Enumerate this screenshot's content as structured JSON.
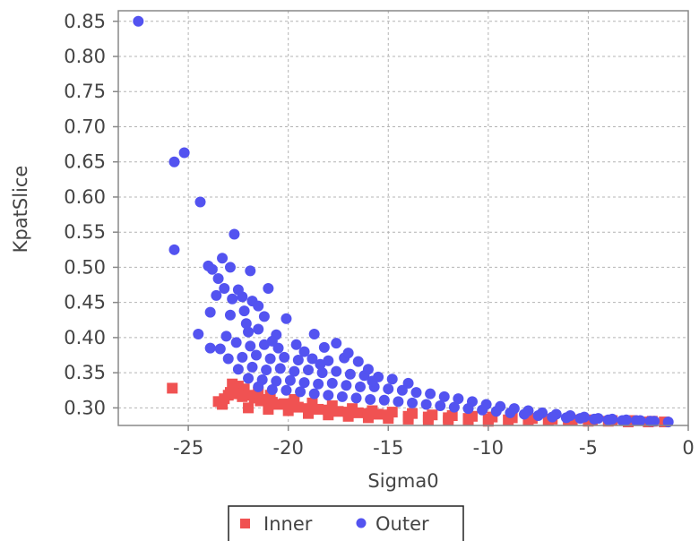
{
  "chart_data": {
    "type": "scatter",
    "title": "",
    "xlabel": "Sigma0",
    "ylabel": "KpatSlice",
    "xlim": [
      -28.5,
      0
    ],
    "ylim": [
      0.275,
      0.865
    ],
    "x_ticks": [
      -25,
      -20,
      -15,
      -10,
      -5,
      0
    ],
    "x_tick_labels": [
      "-25",
      "-20",
      "-15",
      "-10",
      "-5",
      "0"
    ],
    "y_ticks": [
      0.3,
      0.35,
      0.4,
      0.45,
      0.5,
      0.55,
      0.6,
      0.65,
      0.7,
      0.75,
      0.8,
      0.85
    ],
    "y_tick_labels": [
      "0.30",
      "0.35",
      "0.40",
      "0.45",
      "0.50",
      "0.55",
      "0.60",
      "0.65",
      "0.70",
      "0.75",
      "0.80",
      "0.85"
    ],
    "grid": true,
    "legend_position": "bottom",
    "series": [
      {
        "name": "Inner",
        "marker": "square",
        "color": "#f05252",
        "points": [
          [
            -25.8,
            0.328
          ],
          [
            -22.8,
            0.334
          ],
          [
            -22.5,
            0.331
          ],
          [
            -22.2,
            0.327
          ],
          [
            -23.5,
            0.309
          ],
          [
            -23.2,
            0.313
          ],
          [
            -23.0,
            0.318
          ],
          [
            -22.9,
            0.322
          ],
          [
            -22.6,
            0.32
          ],
          [
            -22.3,
            0.316
          ],
          [
            -22.0,
            0.318
          ],
          [
            -21.7,
            0.314
          ],
          [
            -21.4,
            0.31
          ],
          [
            -21.1,
            0.312
          ],
          [
            -20.8,
            0.308
          ],
          [
            -20.5,
            0.305
          ],
          [
            -20.2,
            0.306
          ],
          [
            -19.8,
            0.303
          ],
          [
            -19.5,
            0.301
          ],
          [
            -19.0,
            0.299
          ],
          [
            -18.5,
            0.298
          ],
          [
            -18.0,
            0.297
          ],
          [
            -17.5,
            0.295
          ],
          [
            -17.0,
            0.294
          ],
          [
            -16.5,
            0.293
          ],
          [
            -16.0,
            0.292
          ],
          [
            -15.5,
            0.291
          ],
          [
            -15.0,
            0.29
          ],
          [
            -14.0,
            0.288
          ],
          [
            -13.0,
            0.287
          ],
          [
            -12.0,
            0.286
          ],
          [
            -11.0,
            0.285
          ],
          [
            -10.0,
            0.284
          ],
          [
            -9.0,
            0.283
          ],
          [
            -8.0,
            0.283
          ],
          [
            -7.0,
            0.282
          ],
          [
            -6.0,
            0.282
          ],
          [
            -5.0,
            0.281
          ],
          [
            -4.0,
            0.281
          ],
          [
            -3.0,
            0.28
          ],
          [
            -2.0,
            0.28
          ],
          [
            -1.2,
            0.28
          ],
          [
            -22.0,
            0.3
          ],
          [
            -21.0,
            0.298
          ],
          [
            -20.0,
            0.296
          ],
          [
            -19.0,
            0.292
          ],
          [
            -18.0,
            0.29
          ],
          [
            -17.0,
            0.288
          ],
          [
            -16.0,
            0.286
          ],
          [
            -15.0,
            0.285
          ],
          [
            -14.0,
            0.284
          ],
          [
            -13.0,
            0.283
          ],
          [
            -12.0,
            0.282
          ],
          [
            -11.0,
            0.282
          ],
          [
            -10.0,
            0.281
          ],
          [
            -23.3,
            0.305
          ],
          [
            -21.5,
            0.322
          ],
          [
            -20.9,
            0.318
          ],
          [
            -19.7,
            0.312
          ],
          [
            -18.8,
            0.307
          ],
          [
            -17.8,
            0.303
          ],
          [
            -16.8,
            0.299
          ],
          [
            -15.8,
            0.296
          ],
          [
            -14.8,
            0.294
          ],
          [
            -13.8,
            0.292
          ],
          [
            -12.8,
            0.29
          ],
          [
            -11.8,
            0.289
          ],
          [
            -10.8,
            0.288
          ],
          [
            -9.8,
            0.287
          ],
          [
            -8.8,
            0.286
          ],
          [
            -7.8,
            0.285
          ],
          [
            -6.8,
            0.284
          ],
          [
            -5.8,
            0.283
          ],
          [
            -4.8,
            0.283
          ],
          [
            -3.8,
            0.282
          ],
          [
            -2.8,
            0.282
          ],
          [
            -1.8,
            0.281
          ]
        ]
      },
      {
        "name": "Outer",
        "marker": "circle",
        "color": "#5353f0",
        "points": [
          [
            -27.5,
            0.85
          ],
          [
            -25.2,
            0.663
          ],
          [
            -25.7,
            0.65
          ],
          [
            -24.4,
            0.593
          ],
          [
            -22.7,
            0.547
          ],
          [
            -25.7,
            0.525
          ],
          [
            -23.3,
            0.513
          ],
          [
            -24.0,
            0.502
          ],
          [
            -23.8,
            0.497
          ],
          [
            -22.9,
            0.5
          ],
          [
            -21.9,
            0.495
          ],
          [
            -23.5,
            0.484
          ],
          [
            -23.2,
            0.47
          ],
          [
            -22.5,
            0.468
          ],
          [
            -21.0,
            0.47
          ],
          [
            -23.6,
            0.46
          ],
          [
            -22.8,
            0.455
          ],
          [
            -22.3,
            0.458
          ],
          [
            -21.8,
            0.452
          ],
          [
            -21.5,
            0.445
          ],
          [
            -23.9,
            0.436
          ],
          [
            -22.9,
            0.432
          ],
          [
            -22.2,
            0.438
          ],
          [
            -21.2,
            0.43
          ],
          [
            -20.1,
            0.427
          ],
          [
            -24.5,
            0.405
          ],
          [
            -23.1,
            0.402
          ],
          [
            -22.0,
            0.408
          ],
          [
            -21.5,
            0.412
          ],
          [
            -20.6,
            0.404
          ],
          [
            -18.7,
            0.405
          ],
          [
            -23.9,
            0.385
          ],
          [
            -23.4,
            0.384
          ],
          [
            -22.6,
            0.393
          ],
          [
            -21.9,
            0.388
          ],
          [
            -21.2,
            0.39
          ],
          [
            -20.5,
            0.385
          ],
          [
            -19.6,
            0.39
          ],
          [
            -18.2,
            0.386
          ],
          [
            -17.6,
            0.392
          ],
          [
            -23.0,
            0.37
          ],
          [
            -22.3,
            0.372
          ],
          [
            -21.6,
            0.375
          ],
          [
            -20.9,
            0.37
          ],
          [
            -20.2,
            0.372
          ],
          [
            -19.5,
            0.368
          ],
          [
            -18.8,
            0.37
          ],
          [
            -18.0,
            0.367
          ],
          [
            -17.2,
            0.371
          ],
          [
            -16.5,
            0.366
          ],
          [
            -22.5,
            0.355
          ],
          [
            -21.8,
            0.358
          ],
          [
            -21.1,
            0.354
          ],
          [
            -20.4,
            0.356
          ],
          [
            -19.7,
            0.352
          ],
          [
            -19.0,
            0.354
          ],
          [
            -18.3,
            0.35
          ],
          [
            -17.6,
            0.352
          ],
          [
            -16.9,
            0.348
          ],
          [
            -16.2,
            0.346
          ],
          [
            -15.5,
            0.344
          ],
          [
            -14.8,
            0.341
          ],
          [
            -22.0,
            0.342
          ],
          [
            -21.3,
            0.34
          ],
          [
            -20.6,
            0.338
          ],
          [
            -19.9,
            0.339
          ],
          [
            -19.2,
            0.336
          ],
          [
            -18.5,
            0.334
          ],
          [
            -17.8,
            0.335
          ],
          [
            -17.1,
            0.332
          ],
          [
            -16.4,
            0.33
          ],
          [
            -15.7,
            0.33
          ],
          [
            -15.0,
            0.327
          ],
          [
            -14.3,
            0.325
          ],
          [
            -13.6,
            0.322
          ],
          [
            -12.9,
            0.32
          ],
          [
            -12.2,
            0.316
          ],
          [
            -11.5,
            0.313
          ],
          [
            -10.8,
            0.309
          ],
          [
            -10.1,
            0.305
          ],
          [
            -9.4,
            0.302
          ],
          [
            -8.7,
            0.299
          ],
          [
            -8.0,
            0.296
          ],
          [
            -7.3,
            0.293
          ],
          [
            -6.6,
            0.291
          ],
          [
            -5.9,
            0.289
          ],
          [
            -5.2,
            0.287
          ],
          [
            -4.5,
            0.285
          ],
          [
            -3.8,
            0.284
          ],
          [
            -3.1,
            0.283
          ],
          [
            -2.4,
            0.282
          ],
          [
            -1.7,
            0.281
          ],
          [
            -1.0,
            0.28
          ],
          [
            -21.5,
            0.33
          ],
          [
            -20.8,
            0.326
          ],
          [
            -20.1,
            0.325
          ],
          [
            -19.4,
            0.323
          ],
          [
            -18.7,
            0.32
          ],
          [
            -18.0,
            0.318
          ],
          [
            -17.3,
            0.316
          ],
          [
            -16.6,
            0.314
          ],
          [
            -15.9,
            0.312
          ],
          [
            -15.2,
            0.311
          ],
          [
            -14.5,
            0.309
          ],
          [
            -13.8,
            0.307
          ],
          [
            -13.1,
            0.305
          ],
          [
            -12.4,
            0.303
          ],
          [
            -11.7,
            0.301
          ],
          [
            -11.0,
            0.299
          ],
          [
            -10.3,
            0.297
          ],
          [
            -9.6,
            0.295
          ],
          [
            -8.9,
            0.293
          ],
          [
            -8.2,
            0.291
          ],
          [
            -7.5,
            0.289
          ],
          [
            -6.8,
            0.287
          ],
          [
            -6.1,
            0.286
          ],
          [
            -5.4,
            0.285
          ],
          [
            -4.7,
            0.284
          ],
          [
            -4.0,
            0.283
          ],
          [
            -3.3,
            0.282
          ],
          [
            -2.6,
            0.282
          ],
          [
            -1.9,
            0.281
          ],
          [
            -14.0,
            0.335
          ],
          [
            -16.0,
            0.355
          ],
          [
            -17.0,
            0.378
          ],
          [
            -19.2,
            0.38
          ],
          [
            -22.1,
            0.42
          ],
          [
            -20.8,
            0.395
          ],
          [
            -18.4,
            0.362
          ],
          [
            -15.8,
            0.338
          ]
        ]
      }
    ]
  }
}
